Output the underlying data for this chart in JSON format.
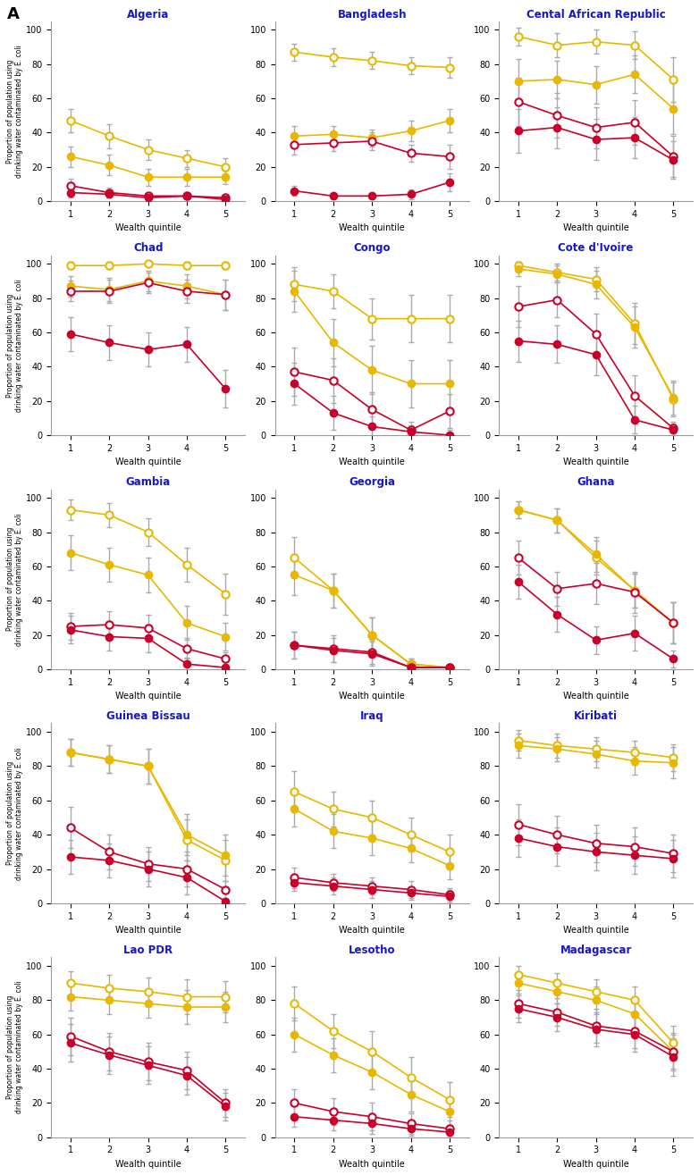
{
  "countries": [
    "Algeria",
    "Bangladesh",
    "Cental African Republic",
    "Chad",
    "Congo",
    "Cote d'Ivoire",
    "Gambia",
    "Georgia",
    "Ghana",
    "Guinea Bissau",
    "Iraq",
    "Kiribati",
    "Lao PDR",
    "Lesotho",
    "Madagascar"
  ],
  "quintiles": [
    1,
    2,
    3,
    4,
    5
  ],
  "series": {
    "Algeria": {
      "line1": [
        47,
        38,
        30,
        25,
        20
      ],
      "line2": [
        26,
        21,
        14,
        14,
        14
      ],
      "line3": [
        9,
        5,
        3,
        3,
        2
      ],
      "line4": [
        5,
        4,
        2,
        3,
        1
      ],
      "line1_ci": [
        7,
        7,
        6,
        5,
        5
      ],
      "line2_ci": [
        6,
        6,
        5,
        5,
        4
      ],
      "line3_ci": [
        4,
        3,
        2,
        2,
        2
      ],
      "line4_ci": [
        3,
        2,
        2,
        2,
        1
      ]
    },
    "Bangladesh": {
      "line1": [
        87,
        84,
        82,
        79,
        78
      ],
      "line2": [
        38,
        39,
        37,
        41,
        47
      ],
      "line3": [
        33,
        34,
        35,
        28,
        26
      ],
      "line4": [
        6,
        3,
        3,
        4,
        11
      ],
      "line1_ci": [
        5,
        5,
        5,
        5,
        6
      ],
      "line2_ci": [
        6,
        5,
        5,
        6,
        7
      ],
      "line3_ci": [
        6,
        5,
        5,
        5,
        7
      ],
      "line4_ci": [
        3,
        2,
        2,
        3,
        5
      ]
    },
    "Cental African Republic": {
      "line1": [
        96,
        91,
        93,
        91,
        71
      ],
      "line2": [
        70,
        71,
        68,
        74,
        54
      ],
      "line3": [
        58,
        50,
        43,
        46,
        26
      ],
      "line4": [
        41,
        43,
        36,
        37,
        24
      ],
      "line1_ci": [
        5,
        7,
        7,
        8,
        13
      ],
      "line2_ci": [
        13,
        11,
        11,
        11,
        15
      ],
      "line3_ci": [
        14,
        13,
        12,
        13,
        12
      ],
      "line4_ci": [
        13,
        12,
        12,
        12,
        11
      ]
    },
    "Chad": {
      "line1": [
        99,
        99,
        100,
        99,
        99
      ],
      "line2": [
        87,
        85,
        90,
        87,
        82
      ],
      "line3": [
        84,
        84,
        89,
        84,
        82
      ],
      "line4": [
        59,
        54,
        50,
        53,
        27
      ],
      "line1_ci": [
        2,
        2,
        1,
        2,
        2
      ],
      "line2_ci": [
        6,
        7,
        6,
        7,
        9
      ],
      "line3_ci": [
        6,
        7,
        6,
        7,
        9
      ],
      "line4_ci": [
        10,
        10,
        10,
        10,
        11
      ]
    },
    "Congo": {
      "line1": [
        88,
        84,
        68,
        68,
        68
      ],
      "line2": [
        84,
        54,
        38,
        30,
        30
      ],
      "line3": [
        37,
        32,
        15,
        3,
        14
      ],
      "line4": [
        30,
        13,
        5,
        2,
        0
      ],
      "line1_ci": [
        10,
        10,
        12,
        14,
        14
      ],
      "line2_ci": [
        12,
        14,
        14,
        14,
        14
      ],
      "line3_ci": [
        14,
        13,
        10,
        5,
        10
      ],
      "line4_ci": [
        12,
        10,
        6,
        4,
        3
      ]
    },
    "Cote d'Ivoire": {
      "line1": [
        99,
        95,
        91,
        65,
        21
      ],
      "line2": [
        97,
        94,
        88,
        63,
        22
      ],
      "line3": [
        75,
        79,
        59,
        23,
        4
      ],
      "line4": [
        55,
        53,
        47,
        9,
        3
      ],
      "line1_ci": [
        2,
        5,
        7,
        12,
        10
      ],
      "line2_ci": [
        4,
        5,
        8,
        12,
        10
      ],
      "line3_ci": [
        12,
        10,
        12,
        12,
        4
      ],
      "line4_ci": [
        12,
        11,
        12,
        8,
        4
      ]
    },
    "Gambia": {
      "line1": [
        93,
        90,
        80,
        61,
        44
      ],
      "line2": [
        68,
        61,
        55,
        27,
        19
      ],
      "line3": [
        25,
        26,
        24,
        12,
        6
      ],
      "line4": [
        23,
        19,
        18,
        3,
        1
      ],
      "line1_ci": [
        6,
        7,
        8,
        10,
        12
      ],
      "line2_ci": [
        10,
        10,
        10,
        10,
        8
      ],
      "line3_ci": [
        8,
        8,
        8,
        6,
        4
      ],
      "line4_ci": [
        8,
        8,
        8,
        4,
        2
      ]
    },
    "Georgia": {
      "line1": [
        65,
        46,
        20,
        3,
        1
      ],
      "line2": [
        55,
        46,
        20,
        3,
        1
      ],
      "line3": [
        14,
        12,
        10,
        1,
        1
      ],
      "line4": [
        14,
        11,
        9,
        1,
        1
      ],
      "line1_ci": [
        12,
        10,
        10,
        3,
        2
      ],
      "line2_ci": [
        12,
        10,
        10,
        3,
        2
      ],
      "line3_ci": [
        8,
        8,
        7,
        2,
        1
      ],
      "line4_ci": [
        8,
        7,
        7,
        2,
        1
      ]
    },
    "Ghana": {
      "line1": [
        93,
        87,
        65,
        46,
        27
      ],
      "line2": [
        93,
        87,
        67,
        46,
        27
      ],
      "line3": [
        65,
        47,
        50,
        45,
        27
      ],
      "line4": [
        51,
        32,
        17,
        21,
        6
      ],
      "line1_ci": [
        5,
        7,
        10,
        10,
        12
      ],
      "line2_ci": [
        5,
        7,
        10,
        10,
        12
      ],
      "line3_ci": [
        10,
        10,
        12,
        12,
        12
      ],
      "line4_ci": [
        10,
        10,
        8,
        10,
        5
      ]
    },
    "Guinea Bissau": {
      "line1": [
        88,
        84,
        80,
        37,
        25
      ],
      "line2": [
        88,
        84,
        80,
        40,
        28
      ],
      "line3": [
        44,
        30,
        23,
        20,
        8
      ],
      "line4": [
        27,
        25,
        20,
        15,
        1
      ],
      "line1_ci": [
        8,
        8,
        10,
        12,
        12
      ],
      "line2_ci": [
        8,
        8,
        10,
        12,
        12
      ],
      "line3_ci": [
        12,
        10,
        10,
        10,
        5
      ],
      "line4_ci": [
        10,
        10,
        10,
        10,
        2
      ]
    },
    "Iraq": {
      "line1": [
        65,
        55,
        50,
        40,
        30
      ],
      "line2": [
        55,
        42,
        38,
        32,
        22
      ],
      "line3": [
        15,
        12,
        10,
        8,
        5
      ],
      "line4": [
        12,
        10,
        8,
        6,
        4
      ],
      "line1_ci": [
        12,
        10,
        10,
        10,
        10
      ],
      "line2_ci": [
        10,
        10,
        10,
        8,
        8
      ],
      "line3_ci": [
        6,
        5,
        5,
        5,
        4
      ],
      "line4_ci": [
        5,
        5,
        5,
        4,
        4
      ]
    },
    "Kiribati": {
      "line1": [
        95,
        92,
        90,
        88,
        85
      ],
      "line2": [
        92,
        90,
        87,
        83,
        82
      ],
      "line3": [
        46,
        40,
        35,
        33,
        29
      ],
      "line4": [
        38,
        33,
        30,
        28,
        26
      ],
      "line1_ci": [
        6,
        7,
        7,
        7,
        8
      ],
      "line2_ci": [
        7,
        7,
        8,
        8,
        9
      ],
      "line3_ci": [
        12,
        11,
        11,
        11,
        11
      ],
      "line4_ci": [
        11,
        11,
        11,
        11,
        11
      ]
    },
    "Lao PDR": {
      "line1": [
        90,
        87,
        85,
        82,
        82
      ],
      "line2": [
        82,
        80,
        78,
        76,
        76
      ],
      "line3": [
        59,
        50,
        44,
        39,
        20
      ],
      "line4": [
        55,
        48,
        42,
        36,
        18
      ],
      "line1_ci": [
        7,
        8,
        8,
        10,
        9
      ],
      "line2_ci": [
        8,
        8,
        8,
        10,
        9
      ],
      "line3_ci": [
        11,
        11,
        11,
        11,
        8
      ],
      "line4_ci": [
        11,
        11,
        11,
        11,
        8
      ]
    },
    "Lesotho": {
      "line1": [
        78,
        62,
        50,
        35,
        22
      ],
      "line2": [
        60,
        48,
        38,
        25,
        15
      ],
      "line3": [
        20,
        15,
        12,
        8,
        5
      ],
      "line4": [
        12,
        10,
        8,
        5,
        3
      ],
      "line1_ci": [
        10,
        10,
        12,
        12,
        10
      ],
      "line2_ci": [
        10,
        10,
        10,
        10,
        8
      ],
      "line3_ci": [
        8,
        8,
        8,
        6,
        5
      ],
      "line4_ci": [
        6,
        6,
        6,
        4,
        3
      ]
    },
    "Madagascar": {
      "line1": [
        95,
        90,
        85,
        80,
        55
      ],
      "line2": [
        90,
        85,
        80,
        72,
        50
      ],
      "line3": [
        78,
        73,
        65,
        62,
        50
      ],
      "line4": [
        75,
        70,
        63,
        60,
        47
      ],
      "line1_ci": [
        5,
        6,
        7,
        8,
        10
      ],
      "line2_ci": [
        6,
        7,
        8,
        8,
        10
      ],
      "line3_ci": [
        8,
        8,
        10,
        10,
        11
      ],
      "line4_ci": [
        8,
        8,
        10,
        10,
        11
      ]
    }
  },
  "ylabel": "Proportion of population using\ndrinking water contaminated by E. coli",
  "xlabel": "Wealth quintile",
  "title_color": "#1616CC",
  "panel_label": "A",
  "color_yellow": "#E8B800",
  "color_red": "#C8002A",
  "color_ci": "#AAAAAA"
}
